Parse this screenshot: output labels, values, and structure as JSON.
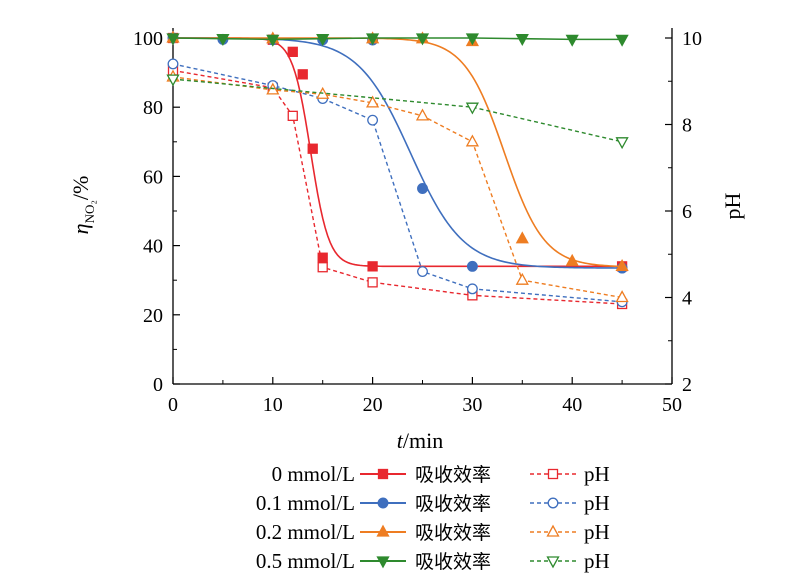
{
  "chart_data": {
    "type": "line",
    "xlabel": "t/min",
    "ylabel": "η_NO2/%",
    "y2label": "pH",
    "xlim": [
      0,
      50
    ],
    "ylim": [
      0,
      100
    ],
    "y2lim": [
      2,
      10
    ],
    "xticks": [
      0,
      10,
      20,
      30,
      40,
      50
    ],
    "yticks": [
      0,
      20,
      40,
      60,
      80,
      100
    ],
    "y2ticks": [
      2,
      4,
      6,
      8,
      10
    ],
    "grid": false,
    "legend_position": "bottom",
    "legend_rows": [
      {
        "concentration": "0 mmol/L",
        "efficiency_label": "吸收效率",
        "ph_label": "pH"
      },
      {
        "concentration": "0.1 mmol/L",
        "efficiency_label": "吸收效率",
        "ph_label": "pH"
      },
      {
        "concentration": "0.2 mmol/L",
        "efficiency_label": "吸收效率",
        "ph_label": "pH"
      },
      {
        "concentration": "0.5 mmol/L",
        "efficiency_label": "吸收效率",
        "ph_label": "pH"
      }
    ],
    "series": [
      {
        "concentration": "0 mmol/L",
        "quantity": "吸收效率",
        "axis": "left",
        "color": "#e8282f",
        "marker": "square",
        "filled": true,
        "line": "solid-fit",
        "x": [
          0,
          10,
          12,
          13,
          14,
          15,
          20,
          45
        ],
        "y": [
          100,
          99.5,
          96,
          89.5,
          68,
          36.5,
          34,
          34
        ],
        "fit": {
          "y0": 100,
          "y1": 34,
          "x0": 13.8,
          "k": 1.1
        }
      },
      {
        "concentration": "0 mmol/L",
        "quantity": "pH",
        "axis": "right",
        "color": "#e8282f",
        "marker": "square",
        "filled": false,
        "line": "dashed",
        "x": [
          0,
          10,
          12,
          15,
          20,
          30,
          45
        ],
        "y": [
          9.25,
          8.85,
          8.2,
          4.7,
          4.35,
          4.05,
          3.85
        ]
      },
      {
        "concentration": "0.1 mmol/L",
        "quantity": "吸收效率",
        "axis": "left",
        "color": "#3f6fbe",
        "marker": "circle",
        "filled": true,
        "line": "solid-fit",
        "x": [
          0,
          5,
          10,
          15,
          20,
          25,
          30,
          45
        ],
        "y": [
          100,
          99.6,
          99.5,
          99.5,
          99.4,
          56.5,
          34,
          33.5
        ],
        "fit": {
          "y0": 100,
          "y1": 33.5,
          "x0": 23.8,
          "k": 0.38
        }
      },
      {
        "concentration": "0.1 mmol/L",
        "quantity": "pH",
        "axis": "right",
        "color": "#3f6fbe",
        "marker": "circle",
        "filled": false,
        "line": "dashed",
        "x": [
          0,
          10,
          15,
          20,
          25,
          30,
          45
        ],
        "y": [
          9.4,
          8.9,
          8.6,
          8.1,
          4.6,
          4.2,
          3.9
        ]
      },
      {
        "concentration": "0.2 mmol/L",
        "quantity": "吸收效率",
        "axis": "left",
        "color": "#ee7d22",
        "marker": "triangle",
        "filled": true,
        "line": "solid-fit",
        "x": [
          0,
          10,
          20,
          25,
          30,
          35,
          40,
          45
        ],
        "y": [
          100,
          99.8,
          99.8,
          99.8,
          99,
          42,
          35.5,
          34
        ],
        "fit": {
          "y0": 100,
          "y1": 33.8,
          "x0": 33.2,
          "k": 0.5
        }
      },
      {
        "concentration": "0.2 mmol/L",
        "quantity": "pH",
        "axis": "right",
        "color": "#ee7d22",
        "marker": "triangle",
        "filled": false,
        "line": "dashed",
        "x": [
          0,
          10,
          15,
          20,
          25,
          30,
          35,
          45
        ],
        "y": [
          9.1,
          8.8,
          8.7,
          8.5,
          8.2,
          7.6,
          4.4,
          4.0
        ]
      },
      {
        "concentration": "0.5 mmol/L",
        "quantity": "吸收效率",
        "axis": "left",
        "color": "#2e8a2e",
        "marker": "triangle-down",
        "filled": true,
        "line": "solid",
        "x": [
          0,
          5,
          10,
          15,
          20,
          25,
          30,
          35,
          40,
          45
        ],
        "y": [
          100,
          99.8,
          99.6,
          99.8,
          100,
          100,
          100,
          99.8,
          99.6,
          99.6
        ]
      },
      {
        "concentration": "0.5 mmol/L",
        "quantity": "pH",
        "axis": "right",
        "color": "#2e8a2e",
        "marker": "triangle-down",
        "filled": false,
        "line": "dashed",
        "x": [
          0,
          30,
          45
        ],
        "y": [
          9.05,
          8.4,
          7.6
        ]
      }
    ]
  }
}
